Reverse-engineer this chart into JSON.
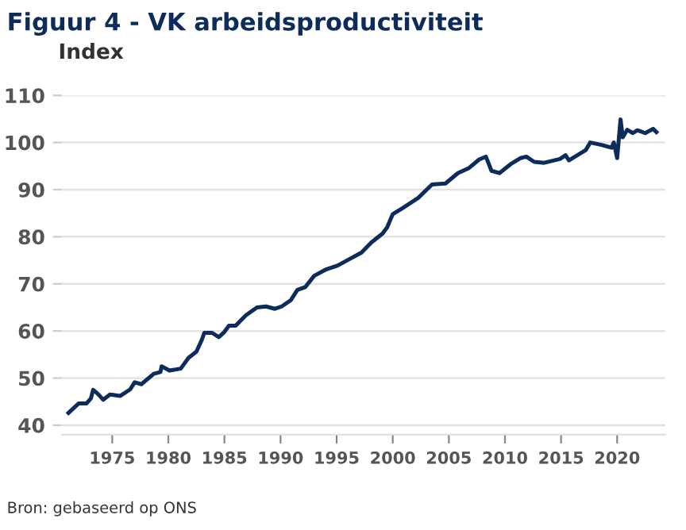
{
  "chart_data": {
    "type": "line",
    "title": "Figuur 4 - VK arbeidsproductiviteit",
    "ylabel": "Index",
    "annotations": [
      "Bron: gebaseerd op ONS"
    ],
    "series": [
      {
        "color": "#0d2b5b",
        "x": [
          1971.1,
          1972.0,
          1972.7,
          1973.1,
          1973.3,
          1973.7,
          1974.2,
          1974.8,
          1975.7,
          1976.6,
          1977.0,
          1977.6,
          1978.7,
          1979.3,
          1979.4,
          1980.1,
          1981.1,
          1981.8,
          1982.5,
          1983.0,
          1983.2,
          1983.9,
          1984.5,
          1985.0,
          1985.4,
          1986.0,
          1986.9,
          1987.9,
          1988.7,
          1989.5,
          1990.1,
          1990.9,
          1991.5,
          1992.2,
          1993.0,
          1994.0,
          1995.1,
          1996.1,
          1997.2,
          1998.1,
          1999.1,
          1999.5,
          2000.0,
          2000.9,
          2002.3,
          2003.5,
          2004.7,
          2005.8,
          2006.8,
          2007.7,
          2008.3,
          2008.8,
          2009.5,
          2010.5,
          2011.4,
          2011.9,
          2012.6,
          2013.5,
          2014.9,
          2015.4,
          2015.7,
          2016.8,
          2017.2,
          2017.6,
          2018.6,
          2019.5,
          2019.7,
          2020.0,
          2020.3,
          2020.5,
          2020.9,
          2021.4,
          2021.8,
          2022.5,
          2023.2,
          2023.5
        ],
        "values": [
          42.6,
          44.6,
          44.6,
          45.7,
          47.5,
          46.7,
          45.4,
          46.5,
          46.2,
          47.6,
          49.1,
          48.7,
          50.9,
          51.3,
          52.5,
          51.6,
          52.0,
          54.3,
          55.6,
          58.2,
          59.6,
          59.6,
          58.7,
          59.8,
          61.1,
          61.1,
          63.3,
          65.0,
          65.2,
          64.7,
          65.2,
          66.5,
          68.7,
          69.3,
          71.7,
          73.0,
          73.9,
          75.2,
          76.6,
          78.8,
          80.7,
          82.0,
          84.8,
          86.1,
          88.3,
          91.1,
          91.3,
          93.5,
          94.6,
          96.4,
          97.0,
          94.0,
          93.5,
          95.4,
          96.7,
          97.0,
          95.9,
          95.7,
          96.5,
          97.3,
          96.2,
          97.8,
          98.4,
          100.0,
          99.5,
          98.9,
          100.0,
          96.7,
          104.9,
          101.1,
          102.7,
          102.0,
          102.6,
          102.0,
          102.9,
          102.2
        ]
      }
    ],
    "xlim": [
      1970.5,
      2024.3
    ],
    "xticks": [
      1975,
      1980,
      1985,
      1990,
      1995,
      2000,
      2005,
      2010,
      2015,
      2020
    ],
    "ylim": [
      38,
      110
    ],
    "yticks": [
      40,
      50,
      60,
      70,
      80,
      90,
      100,
      110
    ],
    "grid": "y",
    "legend": false,
    "marker": "none",
    "line_style": "solid"
  }
}
